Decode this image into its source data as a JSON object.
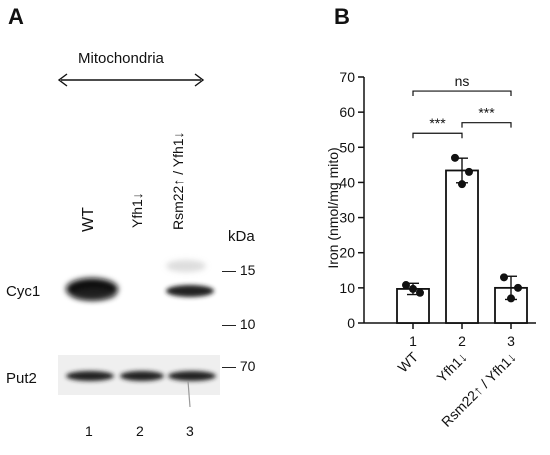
{
  "panelA": {
    "letter": "A",
    "header": "Mitochondria",
    "lanes": [
      "WT",
      "Yfh1↓",
      "Rsm22↑ / Yfh1↓"
    ],
    "lane_numbers": [
      "1",
      "2",
      "3"
    ],
    "row_labels": [
      "Cyc1",
      "Put2"
    ],
    "kda_label": "kDa",
    "markers": [
      "15",
      "10",
      "70"
    ]
  },
  "panelB": {
    "letter": "B"
  },
  "chart_data": {
    "type": "bar",
    "ylabel": "Iron (nmol/mg mito)",
    "ylim": [
      0,
      70
    ],
    "yticks": [
      0,
      10,
      20,
      30,
      40,
      50,
      60,
      70
    ],
    "categories": [
      "1",
      "2",
      "3"
    ],
    "category_labels": [
      "WT",
      "Yfh1↓",
      "Rsm22↑ / Yfh1↓"
    ],
    "values": [
      9.7,
      43.4,
      10.0
    ],
    "errors": [
      1.6,
      3.5,
      3.3
    ],
    "points": [
      [
        10.8,
        8.6,
        9.7
      ],
      [
        47.0,
        43.0,
        39.5
      ],
      [
        13.0,
        10.0,
        7.0
      ]
    ],
    "significance": [
      {
        "from": 0,
        "to": 1,
        "label": "***"
      },
      {
        "from": 1,
        "to": 2,
        "label": "***"
      },
      {
        "from": 0,
        "to": 2,
        "label": "ns"
      }
    ]
  }
}
